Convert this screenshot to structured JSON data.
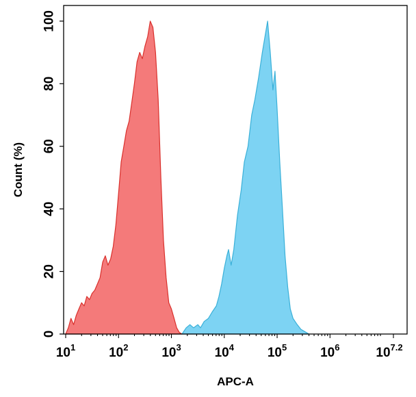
{
  "chart_data": {
    "type": "area",
    "title": "",
    "xlabel": "APC-A",
    "ylabel": "Count  (%)",
    "xscale": "log10",
    "xlim": [
      1,
      7.2
    ],
    "ylim": [
      0,
      105
    ],
    "yticks": [
      0,
      20,
      40,
      60,
      80,
      100
    ],
    "ytick_labels": [
      "0",
      "20",
      "40",
      "60",
      "80",
      "100"
    ],
    "xticks": [
      1,
      2,
      3,
      4,
      5,
      6,
      7.2
    ],
    "xtick_labels": [
      {
        "base": "10",
        "exp": "1"
      },
      {
        "base": "10",
        "exp": "2"
      },
      {
        "base": "10",
        "exp": "3"
      },
      {
        "base": "10",
        "exp": "4"
      },
      {
        "base": "10",
        "exp": "5"
      },
      {
        "base": "10",
        "exp": "6"
      },
      {
        "base": "10",
        "exp": "7.2"
      }
    ],
    "grid": false,
    "series": [
      {
        "fill": "#f47a7a",
        "stroke": "#d9302c",
        "points": [
          [
            1.0,
            0
          ],
          [
            1.05,
            2
          ],
          [
            1.1,
            5
          ],
          [
            1.15,
            3
          ],
          [
            1.2,
            6
          ],
          [
            1.25,
            8
          ],
          [
            1.3,
            10
          ],
          [
            1.35,
            9
          ],
          [
            1.4,
            12
          ],
          [
            1.45,
            11
          ],
          [
            1.5,
            13
          ],
          [
            1.55,
            14
          ],
          [
            1.6,
            16
          ],
          [
            1.65,
            18
          ],
          [
            1.7,
            23
          ],
          [
            1.75,
            25
          ],
          [
            1.8,
            22
          ],
          [
            1.85,
            24
          ],
          [
            1.9,
            28
          ],
          [
            1.95,
            35
          ],
          [
            2.0,
            45
          ],
          [
            2.05,
            55
          ],
          [
            2.1,
            60
          ],
          [
            2.15,
            65
          ],
          [
            2.2,
            68
          ],
          [
            2.25,
            74
          ],
          [
            2.3,
            80
          ],
          [
            2.35,
            87
          ],
          [
            2.4,
            90
          ],
          [
            2.45,
            88
          ],
          [
            2.5,
            92
          ],
          [
            2.55,
            95
          ],
          [
            2.6,
            100
          ],
          [
            2.65,
            98
          ],
          [
            2.7,
            90
          ],
          [
            2.75,
            75
          ],
          [
            2.8,
            50
          ],
          [
            2.85,
            30
          ],
          [
            2.9,
            18
          ],
          [
            2.95,
            10
          ],
          [
            3.0,
            8
          ],
          [
            3.05,
            5
          ],
          [
            3.1,
            2
          ],
          [
            3.15,
            0.5
          ],
          [
            3.2,
            0
          ]
        ]
      },
      {
        "fill": "#7dd3f3",
        "stroke": "#3ab0d8",
        "points": [
          [
            3.2,
            0
          ],
          [
            3.28,
            2
          ],
          [
            3.35,
            3
          ],
          [
            3.42,
            2
          ],
          [
            3.5,
            3
          ],
          [
            3.55,
            2
          ],
          [
            3.62,
            4
          ],
          [
            3.7,
            5
          ],
          [
            3.77,
            7
          ],
          [
            3.85,
            9
          ],
          [
            3.9,
            12
          ],
          [
            3.95,
            16
          ],
          [
            4.0,
            21
          ],
          [
            4.05,
            25
          ],
          [
            4.08,
            27
          ],
          [
            4.13,
            22
          ],
          [
            4.18,
            27
          ],
          [
            4.25,
            38
          ],
          [
            4.32,
            46
          ],
          [
            4.38,
            55
          ],
          [
            4.45,
            60
          ],
          [
            4.52,
            70
          ],
          [
            4.58,
            75
          ],
          [
            4.65,
            82
          ],
          [
            4.72,
            90
          ],
          [
            4.78,
            96
          ],
          [
            4.82,
            100
          ],
          [
            4.87,
            90
          ],
          [
            4.92,
            78
          ],
          [
            4.96,
            84
          ],
          [
            5.0,
            72
          ],
          [
            5.05,
            55
          ],
          [
            5.1,
            40
          ],
          [
            5.15,
            25
          ],
          [
            5.2,
            15
          ],
          [
            5.25,
            8
          ],
          [
            5.3,
            5
          ],
          [
            5.38,
            3
          ],
          [
            5.45,
            1.5
          ],
          [
            5.55,
            0.5
          ],
          [
            5.6,
            0
          ]
        ]
      }
    ]
  }
}
